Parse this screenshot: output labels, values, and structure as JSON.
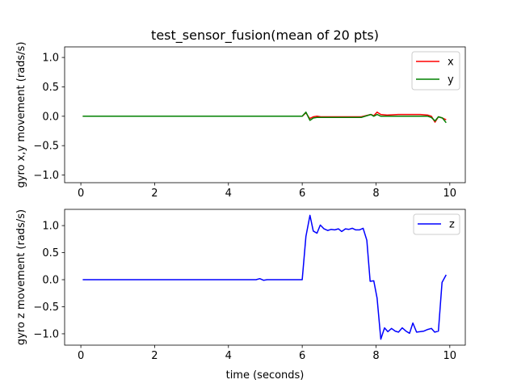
{
  "chart_data": [
    {
      "type": "line",
      "title": "test_sensor_fusion(mean of 20 pts)",
      "xlabel": "",
      "ylabel": "gyro x,y movement (rads/s)",
      "xlim": [
        -0.44,
        10.42
      ],
      "ylim": [
        -1.13,
        1.18
      ],
      "xticks": [
        0,
        2,
        4,
        6,
        8,
        10
      ],
      "yticks": [
        -1.0,
        -0.5,
        0.0,
        0.5,
        1.0
      ],
      "grid": false,
      "legend": "top-right",
      "series": [
        {
          "name": "x",
          "color": "#ff0000",
          "points": [
            [
              0.05,
              0
            ],
            [
              6.0,
              0
            ],
            [
              6.1,
              0.06
            ],
            [
              6.2,
              -0.04
            ],
            [
              6.3,
              -0.01
            ],
            [
              6.4,
              0.0
            ],
            [
              6.5,
              -0.01
            ],
            [
              6.7,
              -0.01
            ],
            [
              7.0,
              -0.01
            ],
            [
              7.3,
              -0.01
            ],
            [
              7.6,
              -0.01
            ],
            [
              7.86,
              0.03
            ],
            [
              7.94,
              0.01
            ],
            [
              8.03,
              0.07
            ],
            [
              8.13,
              0.03
            ],
            [
              8.3,
              0.02
            ],
            [
              8.6,
              0.03
            ],
            [
              8.9,
              0.03
            ],
            [
              9.2,
              0.03
            ],
            [
              9.4,
              0.02
            ],
            [
              9.5,
              0.0
            ],
            [
              9.6,
              -0.1
            ],
            [
              9.69,
              -0.01
            ],
            [
              9.8,
              -0.03
            ],
            [
              9.9,
              -0.06
            ]
          ]
        },
        {
          "name": "y",
          "color": "#008000",
          "points": [
            [
              0.05,
              0
            ],
            [
              6.0,
              0
            ],
            [
              6.1,
              0.07
            ],
            [
              6.21,
              -0.07
            ],
            [
              6.3,
              -0.03
            ],
            [
              6.4,
              -0.02
            ],
            [
              6.7,
              -0.02
            ],
            [
              7.0,
              -0.02
            ],
            [
              7.3,
              -0.02
            ],
            [
              7.6,
              -0.02
            ],
            [
              7.86,
              0.03
            ],
            [
              7.94,
              0.0
            ],
            [
              8.03,
              0.03
            ],
            [
              8.13,
              0.0
            ],
            [
              8.5,
              0.0
            ],
            [
              9.0,
              0.0
            ],
            [
              9.4,
              0.0
            ],
            [
              9.5,
              -0.02
            ],
            [
              9.6,
              -0.08
            ],
            [
              9.69,
              -0.01
            ],
            [
              9.8,
              -0.03
            ],
            [
              9.9,
              -0.11
            ]
          ]
        }
      ]
    },
    {
      "type": "line",
      "title": "",
      "xlabel": "time (seconds)",
      "ylabel": "gyro z movement (rads/s)",
      "xlim": [
        -0.44,
        10.42
      ],
      "ylim": [
        -1.21,
        1.3
      ],
      "xticks": [
        0,
        2,
        4,
        6,
        8,
        10
      ],
      "yticks": [
        -1.0,
        -0.5,
        0.0,
        0.5,
        1.0
      ],
      "grid": false,
      "legend": "top-right",
      "series": [
        {
          "name": "z",
          "color": "#0000ff",
          "points": [
            [
              0.05,
              0
            ],
            [
              4.75,
              0
            ],
            [
              4.85,
              0.02
            ],
            [
              4.95,
              -0.01
            ],
            [
              5.05,
              0
            ],
            [
              6.0,
              0
            ],
            [
              6.1,
              0.8
            ],
            [
              6.21,
              1.19
            ],
            [
              6.3,
              0.9
            ],
            [
              6.4,
              0.86
            ],
            [
              6.49,
              1.01
            ],
            [
              6.59,
              0.94
            ],
            [
              6.69,
              0.91
            ],
            [
              6.78,
              0.93
            ],
            [
              6.88,
              0.92
            ],
            [
              6.98,
              0.94
            ],
            [
              7.07,
              0.89
            ],
            [
              7.17,
              0.94
            ],
            [
              7.26,
              0.93
            ],
            [
              7.36,
              0.95
            ],
            [
              7.45,
              0.92
            ],
            [
              7.55,
              0.92
            ],
            [
              7.65,
              0.95
            ],
            [
              7.75,
              0.73
            ],
            [
              7.84,
              -0.03
            ],
            [
              7.94,
              -0.02
            ],
            [
              8.03,
              -0.34
            ],
            [
              8.13,
              -1.1
            ],
            [
              8.23,
              -0.89
            ],
            [
              8.32,
              -0.96
            ],
            [
              8.42,
              -0.9
            ],
            [
              8.52,
              -0.95
            ],
            [
              8.61,
              -0.97
            ],
            [
              8.71,
              -0.89
            ],
            [
              8.81,
              -0.95
            ],
            [
              8.91,
              -0.99
            ],
            [
              9.0,
              -0.8
            ],
            [
              9.1,
              -0.97
            ],
            [
              9.2,
              -0.96
            ],
            [
              9.3,
              -0.95
            ],
            [
              9.4,
              -0.92
            ],
            [
              9.5,
              -0.9
            ],
            [
              9.59,
              -0.97
            ],
            [
              9.69,
              -0.95
            ],
            [
              9.79,
              -0.05
            ],
            [
              9.9,
              0.09
            ]
          ]
        }
      ]
    }
  ]
}
